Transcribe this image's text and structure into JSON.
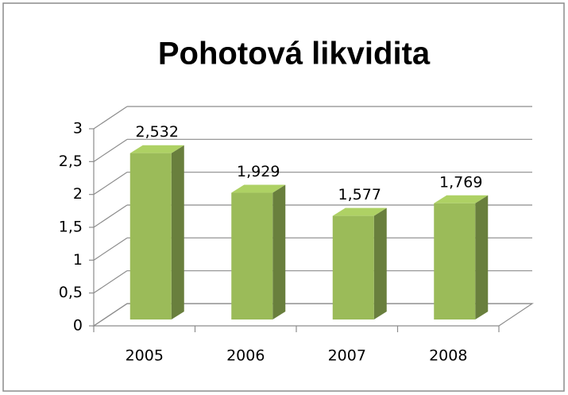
{
  "chart_data": {
    "type": "bar3d",
    "title": "Pohotová likvidita",
    "categories": [
      "2005",
      "2006",
      "2007",
      "2008"
    ],
    "values": [
      2.532,
      1.929,
      1.577,
      1.769
    ],
    "value_labels": [
      "2,532",
      "1,929",
      "1,577",
      "1,769"
    ],
    "color": "#9bbb59",
    "ylim": [
      0,
      3
    ],
    "yticks": [
      0,
      {
        "value": 0.5,
        "label": "0,5"
      },
      1,
      {
        "value": 1.5,
        "label": "1,5"
      },
      2,
      {
        "value": 2.5,
        "label": "2,5"
      },
      3
    ],
    "grid": true
  }
}
